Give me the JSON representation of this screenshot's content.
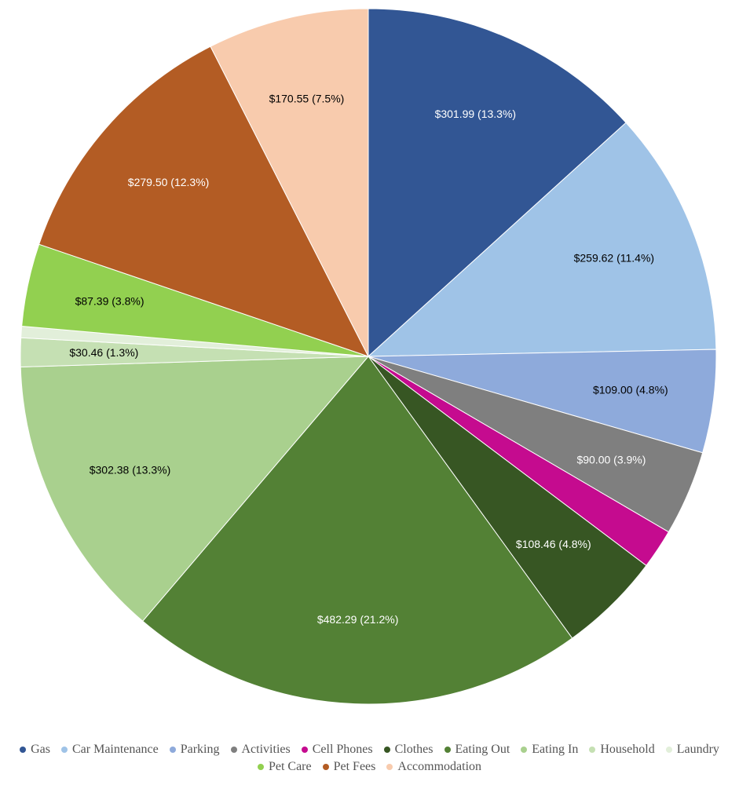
{
  "chart_data": {
    "type": "pie",
    "categories": [
      "Gas",
      "Car Maintenance",
      "Parking",
      "Activities",
      "Cell Phones",
      "Clothes",
      "Eating Out",
      "Eating In",
      "Household",
      "Laundry",
      "Pet Care",
      "Pet Fees",
      "Accommodation"
    ],
    "values": [
      301.99,
      259.62,
      109.0,
      90.0,
      42,
      108.46,
      482.29,
      302.38,
      30.46,
      12,
      87.39,
      279.5,
      170.55
    ],
    "value_labels": [
      "$301.99 (13.3%)",
      "$259.62 (11.4%)",
      "$109.00 (4.8%)",
      "$90.00 (3.9%)",
      null,
      "$108.46 (4.8%)",
      "$482.29 (21.2%)",
      "$302.38 (13.3%)",
      "$30.46 (1.3%)",
      null,
      "$87.39 (3.8%)",
      "$279.50 (12.3%)",
      "$170.55 (7.5%)"
    ],
    "colors": [
      "#325694",
      "#9fc3e7",
      "#8eaadb",
      "#7f7f7f",
      "#c50b8f",
      "#375623",
      "#538135",
      "#a9d08e",
      "#c5e0b3",
      "#e2efda",
      "#92d050",
      "#b35c24",
      "#f8cbad"
    ],
    "legend": "bottom"
  }
}
